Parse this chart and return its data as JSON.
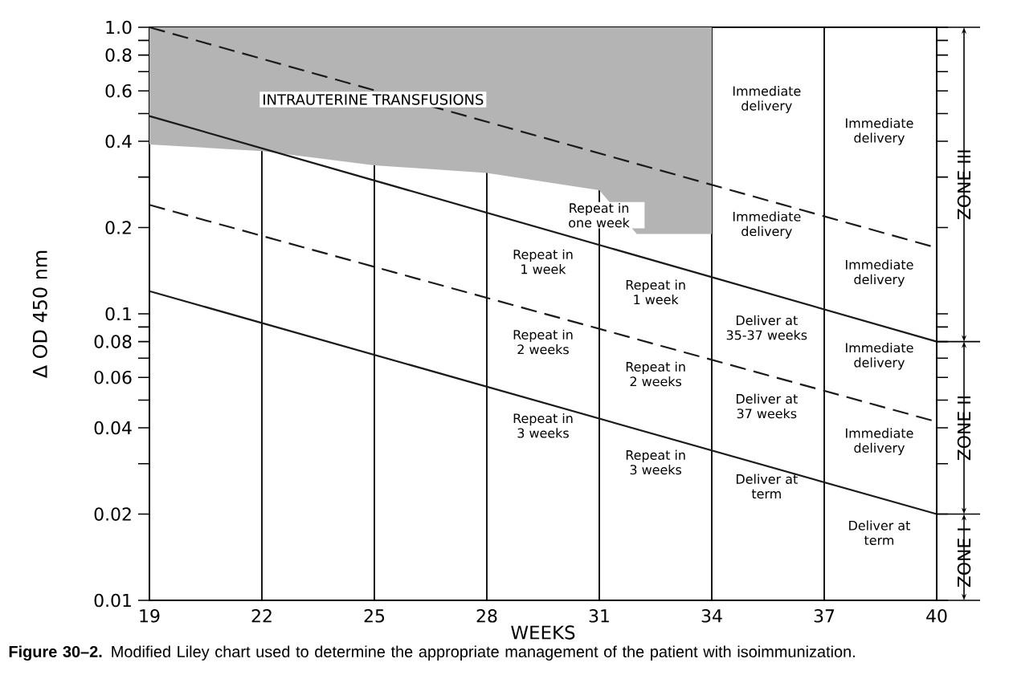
{
  "chart_data": {
    "type": "line",
    "xlabel": "WEEKS",
    "ylabel": "Δ OD 450 nm",
    "log": true,
    "grid": "x",
    "marker": "none",
    "xlim": [
      19,
      40
    ],
    "xticks": [
      19,
      22,
      25,
      28,
      31,
      34,
      37,
      40
    ],
    "ylim": [
      0.01,
      1
    ],
    "yticks": [
      0.01,
      0.02,
      {
        "value": 0.03,
        "label": null
      },
      0.04,
      {
        "value": 0.05,
        "label": null
      },
      0.06,
      {
        "value": 0.07,
        "label": null
      },
      0.08,
      {
        "value": 0.09,
        "label": null
      },
      0.1,
      0.2,
      {
        "value": 0.3,
        "label": null
      },
      0.4,
      {
        "value": 0.5,
        "label": null
      },
      0.6,
      {
        "value": 0.7,
        "label": null
      },
      0.8,
      {
        "value": 0.9,
        "label": null
      },
      {
        "value": 1,
        "label": "1.0"
      }
    ],
    "series": [
      {
        "type": "area",
        "color": "#b4b4b4",
        "x": [
          19,
          22,
          25,
          28,
          31,
          32,
          34,
          34,
          19
        ],
        "values": [
          0.39,
          0.37,
          0.33,
          0.31,
          0.27,
          0.19,
          0.19,
          1,
          1
        ]
      },
      {
        "line_style": "dashed",
        "color": "#1a1a1a",
        "x": [
          19,
          40
        ],
        "values": [
          1.0,
          0.17
        ]
      },
      {
        "line_style": "solid",
        "color": "#1a1a1a",
        "x": [
          19,
          40
        ],
        "values": [
          0.49,
          0.08
        ]
      },
      {
        "line_style": "dashed",
        "color": "#1a1a1a",
        "x": [
          19,
          40
        ],
        "values": [
          0.24,
          0.042
        ]
      },
      {
        "line_style": "solid",
        "color": "#1a1a1a",
        "x": [
          19,
          40
        ],
        "values": [
          0.12,
          0.02
        ]
      }
    ],
    "annotations": [
      "INTRAUTERINE TRANSFUSIONS",
      "Immediate delivery",
      "Immediate delivery",
      "Repeat in one week",
      "Immediate delivery",
      "Repeat in 1 week",
      "Immediate delivery",
      "Repeat in 1 week",
      "Deliver at 35-37 weeks",
      "Repeat in 2 weeks",
      "Immediate delivery",
      "Repeat in 2 weeks",
      "Deliver at 37 weeks",
      "Repeat in 3 weeks",
      "Immediate delivery",
      "Repeat in 3 weeks",
      "Deliver at term",
      "Deliver at term",
      "ZONE III",
      "ZONE II",
      "ZONE I",
      "**Figure 30–2.** Modified Liley chart used to determine the appropriate management of the patient with isoimmunization."
    ]
  }
}
